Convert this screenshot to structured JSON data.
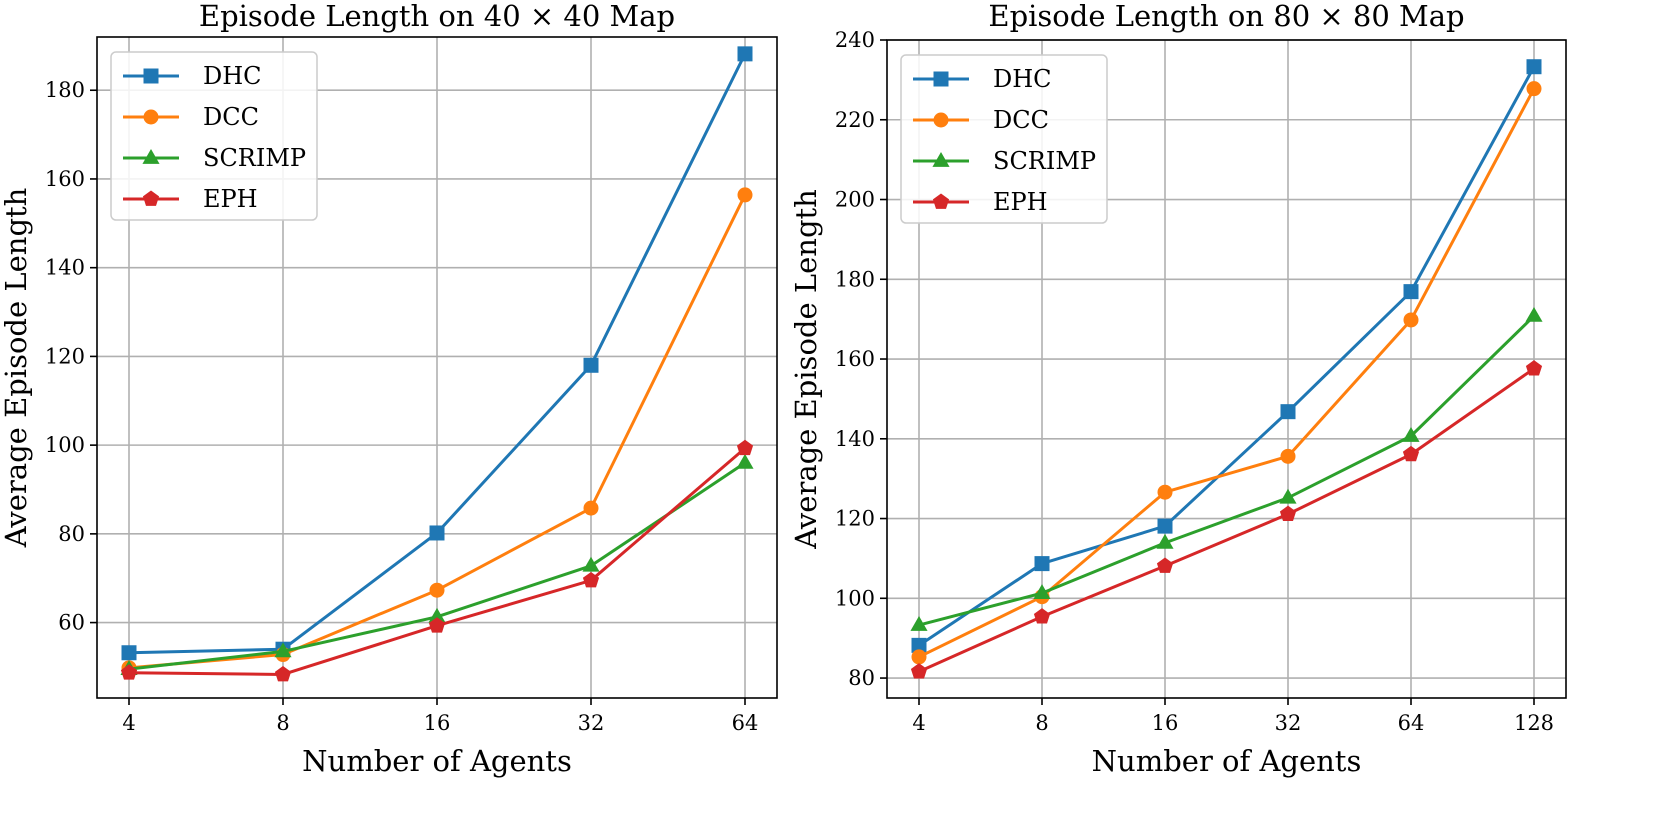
{
  "chart_data": [
    {
      "type": "line",
      "title": "Episode Length on 40 × 40 Map",
      "xlabel": "Number of Agents",
      "ylabel": "Average Episode Length",
      "x": [
        "4",
        "8",
        "16",
        "32",
        "64"
      ],
      "yticks": [
        60,
        80,
        100,
        120,
        140,
        160,
        180
      ],
      "ylim": [
        43,
        192
      ],
      "grid": true,
      "legend": "top-left",
      "series": [
        {
          "name": "DHC",
          "color": "#1f77b4",
          "marker": "square",
          "values": [
            53.2,
            54.0,
            80.2,
            118.0,
            188.2
          ]
        },
        {
          "name": "DCC",
          "color": "#ff7f0e",
          "marker": "circle",
          "values": [
            49.8,
            52.8,
            67.3,
            85.8,
            156.4
          ]
        },
        {
          "name": "SCRIMP",
          "color": "#2ca02c",
          "marker": "triangle",
          "values": [
            49.5,
            53.5,
            61.3,
            72.8,
            96.0
          ]
        },
        {
          "name": "EPH",
          "color": "#d62728",
          "marker": "pentagon",
          "values": [
            48.7,
            48.3,
            59.3,
            69.5,
            99.3
          ]
        }
      ]
    },
    {
      "type": "line",
      "title": "Episode Length on 80 × 80 Map",
      "xlabel": "Number of Agents",
      "ylabel": "Average Episode Length",
      "x": [
        "4",
        "8",
        "16",
        "32",
        "64",
        "128"
      ],
      "yticks": [
        80,
        100,
        120,
        140,
        160,
        180,
        200,
        220,
        240
      ],
      "ylim": [
        75,
        240
      ],
      "grid": true,
      "legend": "top-left",
      "series": [
        {
          "name": "DHC",
          "color": "#1f77b4",
          "marker": "square",
          "values": [
            88.2,
            108.7,
            118.1,
            146.8,
            176.9,
            233.3
          ]
        },
        {
          "name": "DCC",
          "color": "#ff7f0e",
          "marker": "circle",
          "values": [
            85.3,
            100.4,
            126.6,
            135.6,
            169.8,
            227.8
          ]
        },
        {
          "name": "SCRIMP",
          "color": "#2ca02c",
          "marker": "triangle",
          "values": [
            93.3,
            101.3,
            113.9,
            125.2,
            140.7,
            170.8
          ]
        },
        {
          "name": "EPH",
          "color": "#d62728",
          "marker": "pentagon",
          "values": [
            81.6,
            95.4,
            108.1,
            121.1,
            136.1,
            157.6
          ]
        }
      ]
    }
  ]
}
